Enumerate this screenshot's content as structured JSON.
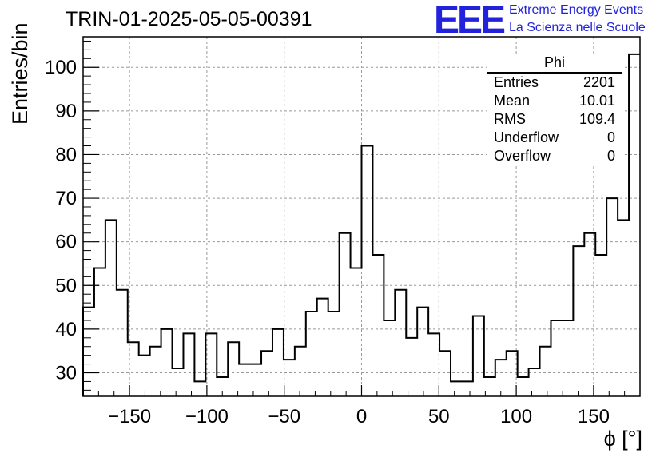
{
  "header": {
    "run_title": "TRIN-01-2025-05-05-00391",
    "logo": {
      "mark": "EEE",
      "line1": "Extreme Energy Events",
      "line2": "La Scienza nelle Scuole",
      "color": "#2222dd"
    }
  },
  "stats_box": {
    "title": "Phi",
    "rows": [
      {
        "label": "Entries",
        "value": "2201"
      },
      {
        "label": "Mean",
        "value": "10.01"
      },
      {
        "label": "RMS",
        "value": "109.4"
      },
      {
        "label": "Underflow",
        "value": "0"
      },
      {
        "label": "Overflow",
        "value": "0"
      }
    ]
  },
  "chart_data": {
    "type": "bar",
    "histogram": true,
    "title": "TRIN-01-2025-05-05-00391",
    "xlabel": "ϕ [°]",
    "ylabel": "Entries/bin",
    "xlim": [
      -180,
      180
    ],
    "ylim": [
      24.6,
      107
    ],
    "bin_edges_start": -180,
    "bin_width": 7.2,
    "values": [
      45,
      54,
      65,
      49,
      37,
      34,
      36,
      40,
      31,
      39,
      28,
      39,
      29,
      37,
      32,
      32,
      35,
      40,
      33,
      36,
      44,
      47,
      44,
      62,
      54,
      82,
      57,
      42,
      49,
      38,
      45,
      39,
      35,
      28,
      28,
      43,
      29,
      33,
      35,
      29,
      31,
      36,
      42,
      42,
      59,
      62,
      57,
      70,
      65,
      103
    ],
    "xticks": [
      -150,
      -100,
      -50,
      0,
      50,
      100,
      150
    ],
    "xtick_labels": [
      "−150",
      "−100",
      "−50",
      "0",
      "50",
      "100",
      "150"
    ],
    "yticks": [
      30,
      40,
      50,
      60,
      70,
      80,
      90,
      100
    ],
    "ytick_labels": [
      "30",
      "40",
      "50",
      "60",
      "70",
      "80",
      "90",
      "100"
    ],
    "grid": true,
    "line_color": "#000000"
  }
}
